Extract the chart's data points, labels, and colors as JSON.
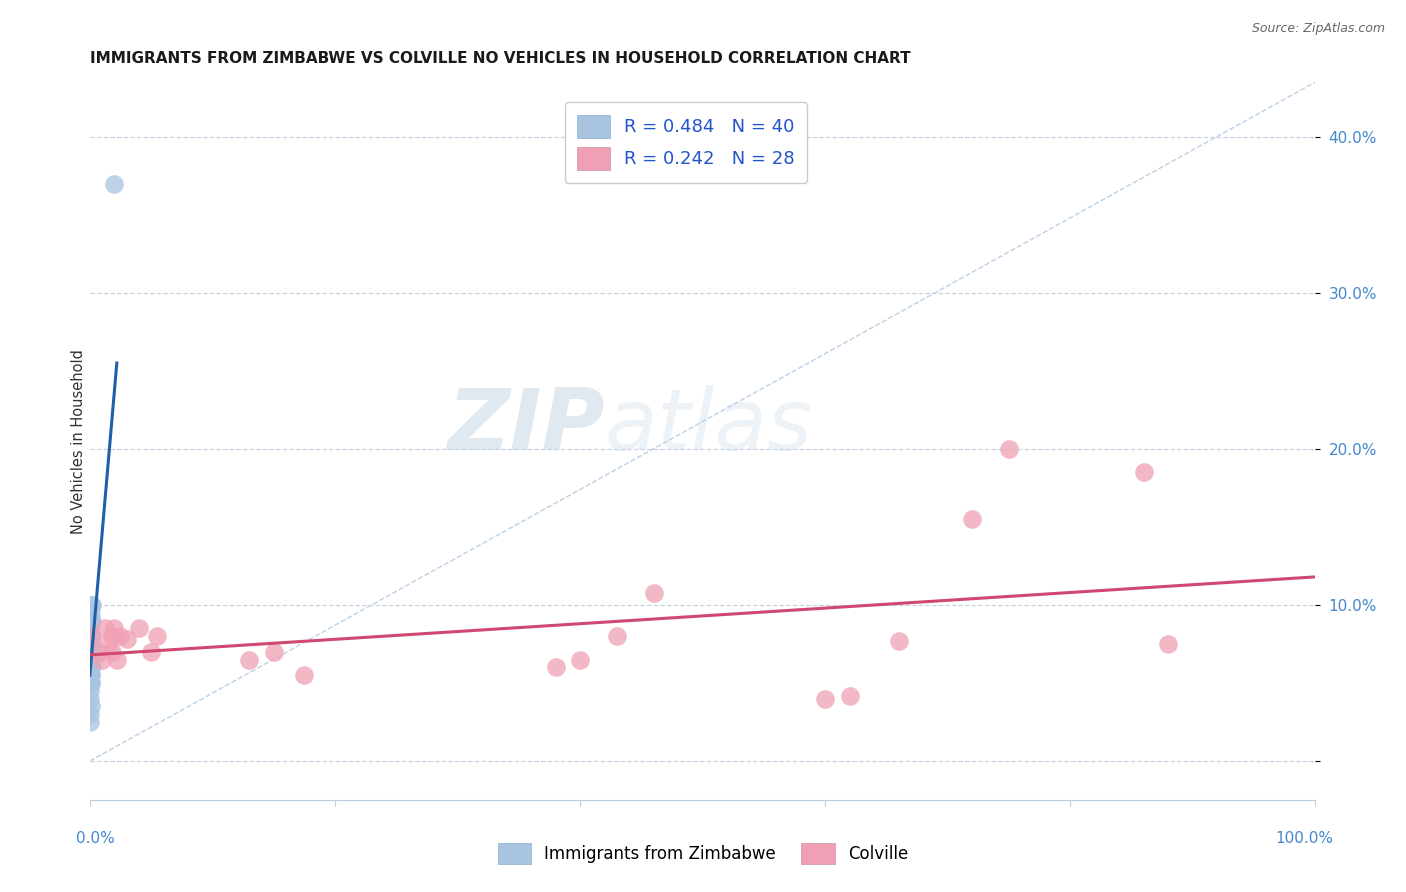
{
  "title": "IMMIGRANTS FROM ZIMBABWE VS COLVILLE NO VEHICLES IN HOUSEHOLD CORRELATION CHART",
  "source": "Source: ZipAtlas.com",
  "ylabel": "No Vehicles in Household",
  "blue_R": 0.484,
  "blue_N": 40,
  "pink_R": 0.242,
  "pink_N": 28,
  "blue_color": "#a8c4e0",
  "blue_line_color": "#2060a8",
  "pink_color": "#f0a0b4",
  "pink_line_color": "#d04870",
  "blue_label": "Immigrants from Zimbabwe",
  "pink_label": "Colville",
  "watermark_ZIP": "ZIP",
  "watermark_atlas": "atlas",
  "xlim": [
    0.0,
    1.0
  ],
  "ylim": [
    -0.025,
    0.435
  ],
  "yticks": [
    0.0,
    0.1,
    0.2,
    0.3,
    0.4
  ],
  "background_color": "#ffffff",
  "grid_color": "#c8d4e4",
  "axis_label_color": "#4488cc",
  "blue_points_x": [
    0.0008,
    0.001,
    0.0012,
    0.0005,
    0.0015,
    0.0008,
    0.001,
    0.0005,
    0.0008,
    0.001,
    0.0012,
    0.0018,
    0.0008,
    0.001,
    0.0005,
    0.0008,
    0.0012,
    0.0005,
    0.0008,
    0.001,
    0.0005,
    0.0008,
    0.001,
    0.0005,
    0.0008,
    0.001,
    0.0005,
    0.0008,
    0.0005,
    0.001,
    0.0008,
    0.0005,
    0.0012,
    0.0008,
    0.001,
    0.0005,
    0.0008,
    0.0005,
    0.0008,
    0.02
  ],
  "blue_points_y": [
    0.06,
    0.075,
    0.08,
    0.055,
    0.09,
    0.05,
    0.07,
    0.085,
    0.095,
    0.075,
    0.08,
    0.1,
    0.06,
    0.075,
    0.065,
    0.055,
    0.09,
    0.07,
    0.06,
    0.08,
    0.07,
    0.06,
    0.055,
    0.08,
    0.065,
    0.09,
    0.045,
    0.06,
    0.03,
    0.05,
    0.08,
    0.04,
    0.1,
    0.06,
    0.07,
    0.05,
    0.08,
    0.025,
    0.035,
    0.37
  ],
  "pink_points_x": [
    0.002,
    0.012,
    0.018,
    0.008,
    0.025,
    0.015,
    0.02,
    0.03,
    0.04,
    0.018,
    0.01,
    0.022,
    0.05,
    0.055,
    0.13,
    0.15,
    0.175,
    0.38,
    0.4,
    0.43,
    0.46,
    0.6,
    0.62,
    0.66,
    0.72,
    0.75,
    0.86,
    0.88
  ],
  "pink_points_y": [
    0.08,
    0.085,
    0.08,
    0.07,
    0.08,
    0.075,
    0.085,
    0.078,
    0.085,
    0.07,
    0.065,
    0.065,
    0.07,
    0.08,
    0.065,
    0.07,
    0.055,
    0.06,
    0.065,
    0.08,
    0.108,
    0.04,
    0.042,
    0.077,
    0.155,
    0.2,
    0.185,
    0.075
  ],
  "blue_line_x": [
    0.0,
    0.022
  ],
  "blue_line_y": [
    0.055,
    0.255
  ],
  "pink_line_x": [
    0.0,
    1.0
  ],
  "pink_line_y": [
    0.068,
    0.118
  ],
  "ref_line_x": [
    0.0,
    1.0
  ],
  "ref_line_y": [
    0.0,
    0.435
  ]
}
